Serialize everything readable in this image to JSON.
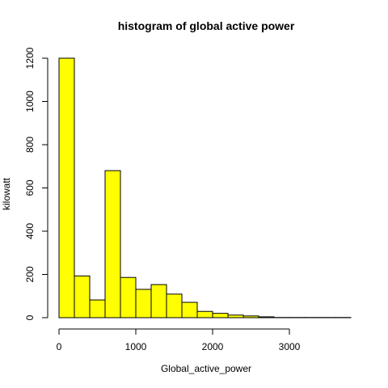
{
  "chart_data": {
    "type": "bar",
    "title": "histogram of global active power",
    "xlabel": "Global_active_power",
    "ylabel": "kilowatt",
    "bar_color": "#FFFF00",
    "bin_width": 200,
    "bin_starts": [
      0,
      200,
      400,
      600,
      800,
      1000,
      1200,
      1400,
      1600,
      1800,
      2000,
      2200,
      2400,
      2600,
      2800,
      3000,
      3200,
      3400,
      3600
    ],
    "values": [
      1200,
      193,
      82,
      680,
      186,
      131,
      153,
      109,
      71,
      29,
      20,
      12,
      8,
      4,
      1,
      1,
      1,
      1,
      1
    ],
    "xlim": [
      0,
      3800
    ],
    "ylim": [
      0,
      1200
    ],
    "x_ticks": [
      0,
      1000,
      2000,
      3000
    ],
    "x_tick_labels": [
      "0",
      "1000",
      "2000",
      "3000"
    ],
    "y_ticks": [
      0,
      200,
      400,
      600,
      800,
      1000,
      1200
    ],
    "y_tick_labels": [
      "0",
      "200",
      "400",
      "600",
      "800",
      "1000",
      "1200"
    ],
    "grid": false,
    "legend": "none"
  }
}
